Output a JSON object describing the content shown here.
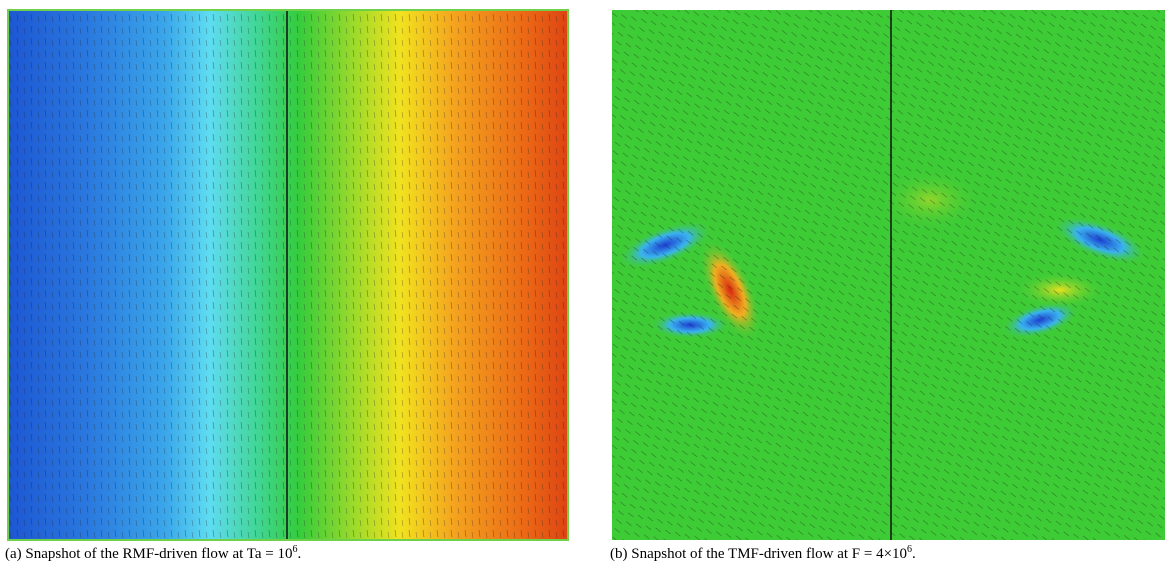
{
  "figures": [
    {
      "caption": [
        "(a) Snapshot of the RMF-driven flow at Ta = 10",
        "6",
        "."
      ]
    },
    {
      "caption": [
        "(b) Snapshot of the TMF-driven flow at F = 4×10",
        "6",
        "."
      ]
    }
  ]
}
